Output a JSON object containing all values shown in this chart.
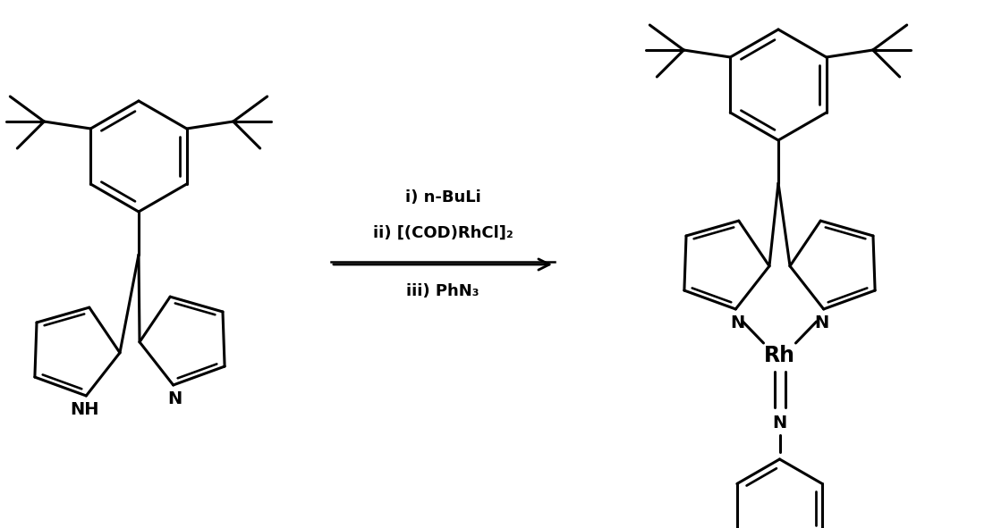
{
  "background_color": "#ffffff",
  "line_color": "#000000",
  "line_width": 2.2,
  "arrow_text_lines": [
    "i) n-BuLi",
    "ii) [(COD)RhCl]₂",
    "iii) PhN₃"
  ],
  "figsize": [
    11.1,
    5.91
  ],
  "dpi": 100
}
